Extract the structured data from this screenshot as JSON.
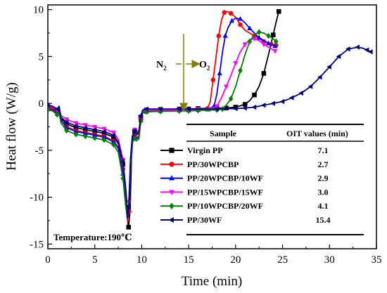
{
  "chart_data": {
    "type": "line",
    "xlabel": "Time (min)",
    "ylabel": "Heat flow (W/g)",
    "xlim": [
      0,
      35
    ],
    "ylim": [
      -15.5,
      10.5
    ],
    "x_ticks": [
      "0",
      "5",
      "10",
      "15",
      "20",
      "25",
      "30",
      "35"
    ],
    "y_ticks": [
      "-15",
      "-10",
      "-5",
      "0",
      "5",
      "10"
    ],
    "annotation": "Temperature:190℃",
    "gas_switch": {
      "at_time": 15,
      "before": "N",
      "before_sub": "2",
      "after": "O",
      "after_sub": "2"
    },
    "table": {
      "headers": [
        "Sample",
        "OIT values (min)"
      ],
      "rows": [
        {
          "sample": "Virgin PP",
          "oit": "7.1"
        },
        {
          "sample": "PP/30WPCBP",
          "oit": "2.7"
        },
        {
          "sample": "PP/20WPCBP/10WF",
          "oit": "2.9"
        },
        {
          "sample": "PP/15WPCBP/15WF",
          "oit": "3.0"
        },
        {
          "sample": "PP/10WPCBP/20WF",
          "oit": "4.1"
        },
        {
          "sample": "PP/30WF",
          "oit": "15.4"
        }
      ]
    },
    "series": [
      {
        "name": "Virgin PP",
        "color": "#000000",
        "marker": "square",
        "points": [
          [
            0,
            -0.4
          ],
          [
            0.5,
            -0.5
          ],
          [
            1.0,
            -0.8
          ],
          [
            1.2,
            -0.6
          ],
          [
            1.4,
            -1.6
          ],
          [
            2,
            -2.2
          ],
          [
            3,
            -2.6
          ],
          [
            4,
            -2.8
          ],
          [
            5,
            -3.0
          ],
          [
            6,
            -3.2
          ],
          [
            7,
            -3.6
          ],
          [
            7.5,
            -4.3
          ],
          [
            8,
            -6.5
          ],
          [
            8.3,
            -9.5
          ],
          [
            8.5,
            -12.5
          ],
          [
            8.6,
            -13.2
          ],
          [
            8.75,
            -11.5
          ],
          [
            8.9,
            -6
          ],
          [
            9.05,
            -3.5
          ],
          [
            9.25,
            -3.0
          ],
          [
            9.4,
            -3.4
          ],
          [
            9.7,
            -3.2
          ],
          [
            9.9,
            -1.5
          ],
          [
            10.1,
            -0.8
          ],
          [
            10.5,
            -0.7
          ],
          [
            12,
            -0.65
          ],
          [
            14,
            -0.6
          ],
          [
            15,
            -0.6
          ],
          [
            16,
            -0.55
          ],
          [
            18,
            -0.5
          ],
          [
            19,
            -0.5
          ],
          [
            20,
            -0.4
          ],
          [
            21,
            -0.1
          ],
          [
            21.5,
            0.3
          ],
          [
            22,
            0.9
          ],
          [
            22.5,
            1.8
          ],
          [
            23,
            3.2
          ],
          [
            23.5,
            5.2
          ],
          [
            24,
            7.3
          ],
          [
            24.3,
            8.6
          ],
          [
            24.6,
            9.8
          ]
        ]
      },
      {
        "name": "PP/30WPCBP",
        "color": "#ff0000",
        "marker": "circle",
        "points": [
          [
            0,
            -0.5
          ],
          [
            0.5,
            -0.6
          ],
          [
            1.0,
            -1.0
          ],
          [
            1.2,
            -0.8
          ],
          [
            1.4,
            -1.8
          ],
          [
            2,
            -2.5
          ],
          [
            3,
            -2.9
          ],
          [
            4,
            -3.1
          ],
          [
            5,
            -3.3
          ],
          [
            6,
            -3.5
          ],
          [
            7,
            -4.0
          ],
          [
            7.5,
            -4.7
          ],
          [
            8,
            -7
          ],
          [
            8.3,
            -10
          ],
          [
            8.5,
            -12.6
          ],
          [
            8.65,
            -11.5
          ],
          [
            8.8,
            -7
          ],
          [
            9.0,
            -4
          ],
          [
            9.25,
            -3.4
          ],
          [
            9.4,
            -3.7
          ],
          [
            9.7,
            -3.5
          ],
          [
            9.9,
            -1.7
          ],
          [
            10.1,
            -0.9
          ],
          [
            10.5,
            -0.8
          ],
          [
            12,
            -0.75
          ],
          [
            14,
            -0.7
          ],
          [
            15,
            -0.7
          ],
          [
            16,
            -0.65
          ],
          [
            17,
            -0.55
          ],
          [
            17.3,
            0.2
          ],
          [
            17.6,
            2.5
          ],
          [
            17.9,
            4.8
          ],
          [
            18.2,
            7.2
          ],
          [
            18.5,
            8.9
          ],
          [
            18.8,
            9.7
          ],
          [
            19.1,
            9.8
          ],
          [
            19.5,
            9.6
          ],
          [
            20,
            9.2
          ],
          [
            20.5,
            8.4
          ],
          [
            21,
            7.8
          ],
          [
            22,
            7.2
          ],
          [
            23,
            6.6
          ],
          [
            23.8,
            6.3
          ],
          [
            24.3,
            6.2
          ]
        ]
      },
      {
        "name": "PP/20WPCBP/10WF",
        "color": "#0000ff",
        "marker": "triangle-up",
        "points": [
          [
            0,
            -0.6
          ],
          [
            0.5,
            -0.7
          ],
          [
            1.0,
            -1.1
          ],
          [
            1.2,
            -0.9
          ],
          [
            1.4,
            -1.8
          ],
          [
            2,
            -2.6
          ],
          [
            3,
            -3.0
          ],
          [
            4,
            -3.2
          ],
          [
            5,
            -3.4
          ],
          [
            6,
            -3.6
          ],
          [
            7,
            -4.1
          ],
          [
            7.5,
            -4.8
          ],
          [
            8,
            -7.5
          ],
          [
            8.3,
            -10.5
          ],
          [
            8.45,
            -12.2
          ],
          [
            8.6,
            -11
          ],
          [
            8.8,
            -6.5
          ],
          [
            9.0,
            -4
          ],
          [
            9.25,
            -3.5
          ],
          [
            9.4,
            -3.8
          ],
          [
            9.7,
            -3.6
          ],
          [
            9.9,
            -1.8
          ],
          [
            10.1,
            -1.0
          ],
          [
            10.5,
            -0.9
          ],
          [
            12,
            -0.8
          ],
          [
            14,
            -0.75
          ],
          [
            15,
            -0.75
          ],
          [
            16,
            -0.7
          ],
          [
            17,
            -0.65
          ],
          [
            17.7,
            -0.3
          ],
          [
            18,
            1.0
          ],
          [
            18.3,
            3.2
          ],
          [
            18.6,
            5.5
          ],
          [
            18.9,
            7.2
          ],
          [
            19.2,
            8.1
          ],
          [
            19.6,
            8.8
          ],
          [
            20,
            9.1
          ],
          [
            20.5,
            9.0
          ],
          [
            21,
            8.6
          ],
          [
            21.5,
            8.0
          ],
          [
            22,
            7.5
          ],
          [
            22.5,
            7.0
          ],
          [
            23,
            6.7
          ],
          [
            23.5,
            6.4
          ],
          [
            24.2,
            6.1
          ]
        ]
      },
      {
        "name": "PP/15WPCBP/15WF",
        "color": "#ff00ff",
        "marker": "triangle-down",
        "points": [
          [
            0,
            -0.3
          ],
          [
            0.5,
            -0.4
          ],
          [
            1.0,
            -0.7
          ],
          [
            1.2,
            -0.5
          ],
          [
            1.4,
            -1.3
          ],
          [
            2,
            -1.7
          ],
          [
            3,
            -2.1
          ],
          [
            4,
            -2.3
          ],
          [
            5,
            -2.5
          ],
          [
            6,
            -2.7
          ],
          [
            7,
            -3.1
          ],
          [
            7.5,
            -3.8
          ],
          [
            8,
            -6
          ],
          [
            8.3,
            -9
          ],
          [
            8.5,
            -11.8
          ],
          [
            8.65,
            -10.5
          ],
          [
            8.8,
            -6
          ],
          [
            9.0,
            -3.5
          ],
          [
            9.25,
            -2.8
          ],
          [
            9.4,
            -3.1
          ],
          [
            9.7,
            -2.9
          ],
          [
            9.9,
            -1.4
          ],
          [
            10.1,
            -0.8
          ],
          [
            10.5,
            -0.7
          ],
          [
            12,
            -0.7
          ],
          [
            14,
            -0.65
          ],
          [
            15,
            -0.65
          ],
          [
            16,
            -0.6
          ],
          [
            17.3,
            -0.6
          ],
          [
            18,
            -0.3
          ],
          [
            18.5,
            0.6
          ],
          [
            19,
            1.8
          ],
          [
            19.5,
            3.0
          ],
          [
            20,
            4.3
          ],
          [
            20.5,
            5.5
          ],
          [
            21,
            6.3
          ],
          [
            21.5,
            6.8
          ],
          [
            22,
            6.9
          ],
          [
            22.5,
            6.7
          ],
          [
            23,
            6.3
          ],
          [
            23.5,
            6.0
          ],
          [
            24.2,
            5.6
          ]
        ]
      },
      {
        "name": "PP/10WPCBP/20WF",
        "color": "#008000",
        "marker": "diamond",
        "points": [
          [
            0,
            -0.7
          ],
          [
            0.5,
            -0.8
          ],
          [
            1.0,
            -1.2
          ],
          [
            1.2,
            -1.0
          ],
          [
            1.4,
            -2.1
          ],
          [
            2,
            -2.9
          ],
          [
            3,
            -3.3
          ],
          [
            4,
            -3.5
          ],
          [
            5,
            -3.7
          ],
          [
            6,
            -3.9
          ],
          [
            7,
            -4.4
          ],
          [
            7.5,
            -5.2
          ],
          [
            8,
            -8
          ],
          [
            8.3,
            -11
          ],
          [
            8.45,
            -12.0
          ],
          [
            8.6,
            -11
          ],
          [
            8.8,
            -7
          ],
          [
            9.0,
            -4.2
          ],
          [
            9.25,
            -3.7
          ],
          [
            9.4,
            -4.0
          ],
          [
            9.7,
            -3.8
          ],
          [
            9.9,
            -1.9
          ],
          [
            10.1,
            -1.0
          ],
          [
            10.5,
            -0.9
          ],
          [
            12,
            -0.85
          ],
          [
            14,
            -0.8
          ],
          [
            15,
            -0.8
          ],
          [
            16,
            -0.75
          ],
          [
            18,
            -0.7
          ],
          [
            18.6,
            -0.6
          ],
          [
            19,
            -0.2
          ],
          [
            19.5,
            0.5
          ],
          [
            20,
            1.8
          ],
          [
            20.5,
            3.5
          ],
          [
            21,
            5.2
          ],
          [
            21.5,
            6.6
          ],
          [
            22,
            7.3
          ],
          [
            22.5,
            7.6
          ],
          [
            23,
            7.5
          ],
          [
            23.5,
            7.2
          ],
          [
            24,
            6.9
          ],
          [
            24.3,
            6.6
          ]
        ]
      },
      {
        "name": "PP/30WF",
        "color": "#000080",
        "marker": "triangle-left",
        "points": [
          [
            0,
            -0.2
          ],
          [
            0.5,
            -0.3
          ],
          [
            1.0,
            -0.6
          ],
          [
            1.2,
            -0.3
          ],
          [
            1.4,
            -1.5
          ],
          [
            2,
            -2.0
          ],
          [
            3,
            -2.4
          ],
          [
            4,
            -2.6
          ],
          [
            5,
            -2.8
          ],
          [
            6,
            -3.0
          ],
          [
            7,
            -3.4
          ],
          [
            7.5,
            -4.1
          ],
          [
            8,
            -6.2
          ],
          [
            8.3,
            -9.2
          ],
          [
            8.5,
            -12.1
          ],
          [
            8.65,
            -11
          ],
          [
            8.8,
            -6
          ],
          [
            9.0,
            -3.5
          ],
          [
            9.25,
            -2.9
          ],
          [
            9.4,
            -3.2
          ],
          [
            9.7,
            -3.0
          ],
          [
            9.9,
            -1.3
          ],
          [
            10.1,
            -0.7
          ],
          [
            10.5,
            -0.6
          ],
          [
            12,
            -0.6
          ],
          [
            14,
            -0.6
          ],
          [
            15,
            -0.6
          ],
          [
            18,
            -0.6
          ],
          [
            20,
            -0.55
          ],
          [
            21,
            -0.5
          ],
          [
            22,
            -0.4
          ],
          [
            23,
            -0.2
          ],
          [
            24,
            0.0
          ],
          [
            25,
            0.2
          ],
          [
            26,
            0.6
          ],
          [
            27,
            1.1
          ],
          [
            28,
            1.8
          ],
          [
            29,
            2.8
          ],
          [
            30,
            3.9
          ],
          [
            31,
            5.0
          ],
          [
            32,
            5.8
          ],
          [
            33,
            6.0
          ],
          [
            33.5,
            5.9
          ],
          [
            34,
            5.7
          ],
          [
            34.4,
            5.5
          ]
        ]
      }
    ]
  }
}
